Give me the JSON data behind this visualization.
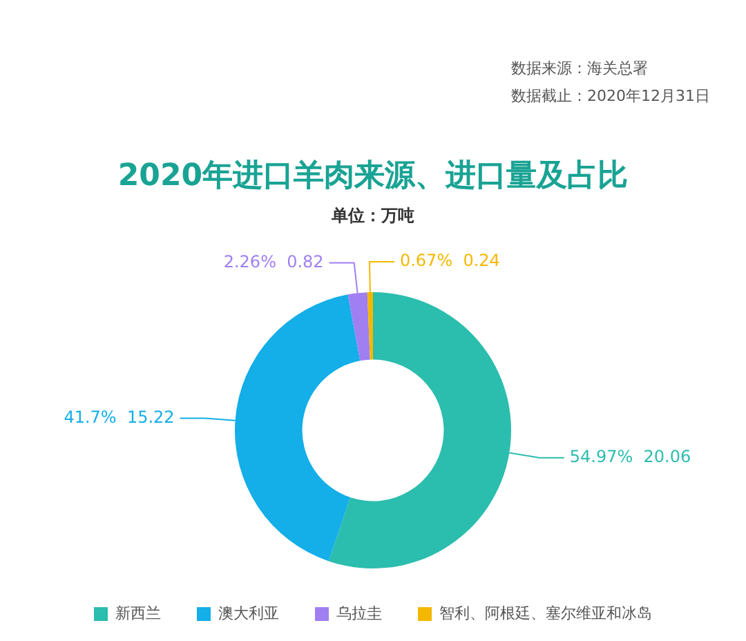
{
  "chart_data": {
    "type": "donut",
    "title": "2020年进口羊肉来源、进口量及占比",
    "subtitle": "单位：万吨",
    "annotations": [
      "数据来源：海关总署",
      "数据截止：2020年12月31日"
    ],
    "categories": [
      "新西兰",
      "澳大利亚",
      "乌拉圭",
      "智利、阿根廷、塞尔维亚和冰岛"
    ],
    "values": [
      20.06,
      15.22,
      0.82,
      0.24
    ],
    "value_labels": [
      "54.97%  20.06",
      "41.7%  15.22",
      "2.26%  0.82",
      "0.67%  0.24"
    ],
    "colors": [
      "#2bbdad",
      "#14aee8",
      "#a07ff2",
      "#f4b800"
    ],
    "legend": "bottom"
  }
}
